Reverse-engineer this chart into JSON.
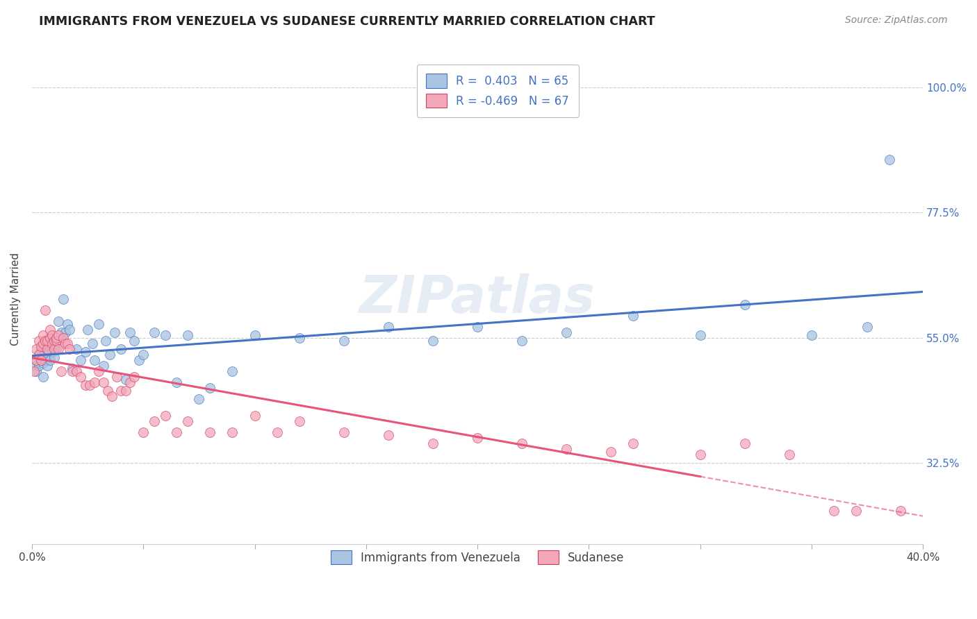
{
  "title": "IMMIGRANTS FROM VENEZUELA VS SUDANESE CURRENTLY MARRIED CORRELATION CHART",
  "source": "Source: ZipAtlas.com",
  "ylabel": "Currently Married",
  "ytick_labels": [
    "100.0%",
    "77.5%",
    "55.0%",
    "32.5%"
  ],
  "ytick_values": [
    1.0,
    0.775,
    0.55,
    0.325
  ],
  "xmin": 0.0,
  "xmax": 0.4,
  "ymin": 0.18,
  "ymax": 1.06,
  "legend_label1": "Immigrants from Venezuela",
  "legend_label2": "Sudanese",
  "R1": 0.403,
  "N1": 65,
  "R2": -0.469,
  "N2": 67,
  "color_venezuela": "#a8c4e0",
  "color_sudanese": "#f4a7b9",
  "line_color_venezuela": "#4472C4",
  "line_color_sudanese": "#E8537A",
  "watermark": "ZIPatlas",
  "venezuela_x": [
    0.001,
    0.002,
    0.002,
    0.003,
    0.003,
    0.004,
    0.004,
    0.005,
    0.005,
    0.006,
    0.006,
    0.007,
    0.007,
    0.008,
    0.008,
    0.009,
    0.01,
    0.01,
    0.011,
    0.011,
    0.012,
    0.013,
    0.014,
    0.015,
    0.016,
    0.017,
    0.018,
    0.02,
    0.022,
    0.024,
    0.025,
    0.027,
    0.028,
    0.03,
    0.032,
    0.033,
    0.035,
    0.037,
    0.04,
    0.042,
    0.044,
    0.046,
    0.048,
    0.05,
    0.055,
    0.06,
    0.065,
    0.07,
    0.075,
    0.08,
    0.09,
    0.1,
    0.12,
    0.14,
    0.16,
    0.18,
    0.2,
    0.22,
    0.24,
    0.27,
    0.3,
    0.32,
    0.35,
    0.375,
    0.385
  ],
  "venezuela_y": [
    0.5,
    0.49,
    0.51,
    0.52,
    0.5,
    0.51,
    0.53,
    0.48,
    0.505,
    0.51,
    0.525,
    0.5,
    0.52,
    0.54,
    0.51,
    0.525,
    0.515,
    0.535,
    0.545,
    0.53,
    0.58,
    0.56,
    0.62,
    0.56,
    0.575,
    0.565,
    0.495,
    0.53,
    0.51,
    0.525,
    0.565,
    0.54,
    0.51,
    0.575,
    0.5,
    0.545,
    0.52,
    0.56,
    0.53,
    0.475,
    0.56,
    0.545,
    0.51,
    0.52,
    0.56,
    0.555,
    0.47,
    0.555,
    0.44,
    0.46,
    0.49,
    0.555,
    0.55,
    0.545,
    0.57,
    0.545,
    0.57,
    0.545,
    0.56,
    0.59,
    0.555,
    0.61,
    0.555,
    0.57,
    0.87
  ],
  "sudanese_x": [
    0.001,
    0.002,
    0.002,
    0.003,
    0.003,
    0.004,
    0.004,
    0.005,
    0.005,
    0.006,
    0.006,
    0.007,
    0.007,
    0.008,
    0.008,
    0.009,
    0.009,
    0.01,
    0.01,
    0.011,
    0.011,
    0.012,
    0.012,
    0.013,
    0.014,
    0.015,
    0.016,
    0.017,
    0.018,
    0.02,
    0.022,
    0.024,
    0.026,
    0.028,
    0.03,
    0.032,
    0.034,
    0.036,
    0.038,
    0.04,
    0.042,
    0.044,
    0.046,
    0.05,
    0.055,
    0.06,
    0.065,
    0.07,
    0.08,
    0.09,
    0.1,
    0.11,
    0.12,
    0.14,
    0.16,
    0.18,
    0.2,
    0.22,
    0.24,
    0.26,
    0.27,
    0.3,
    0.32,
    0.34,
    0.36,
    0.37,
    0.39
  ],
  "sudanese_y": [
    0.49,
    0.51,
    0.53,
    0.52,
    0.545,
    0.51,
    0.535,
    0.54,
    0.555,
    0.545,
    0.6,
    0.53,
    0.545,
    0.55,
    0.565,
    0.555,
    0.54,
    0.545,
    0.53,
    0.545,
    0.55,
    0.555,
    0.53,
    0.49,
    0.55,
    0.54,
    0.54,
    0.53,
    0.49,
    0.49,
    0.48,
    0.465,
    0.465,
    0.47,
    0.49,
    0.47,
    0.455,
    0.445,
    0.48,
    0.455,
    0.455,
    0.47,
    0.48,
    0.38,
    0.4,
    0.41,
    0.38,
    0.4,
    0.38,
    0.38,
    0.41,
    0.38,
    0.4,
    0.38,
    0.375,
    0.36,
    0.37,
    0.36,
    0.35,
    0.345,
    0.36,
    0.34,
    0.36,
    0.34,
    0.24,
    0.24,
    0.24
  ],
  "trendline_dash_start_x": 0.3,
  "trendline_dash_end_x": 0.4
}
